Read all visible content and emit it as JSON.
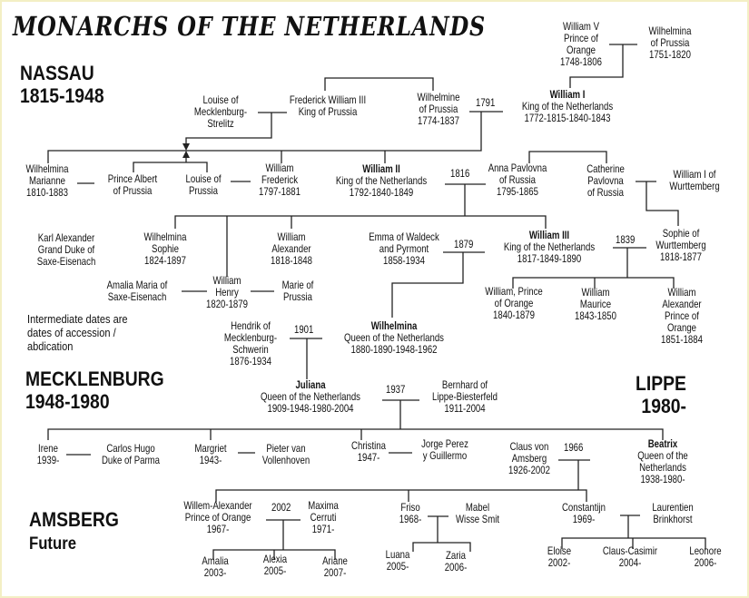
{
  "title": "MONARCHS OF THE NETHERLANDS",
  "houses": {
    "nassau": "NASSAU\n1815-1948",
    "mecklenburg": "MECKLENBURG\n1948-1980",
    "lippe": "LIPPE\n1980-",
    "amsberg_name": "AMSBERG",
    "amsberg_sub": "Future"
  },
  "note": "Intermediate dates are\ndates of accession /\nabdication",
  "marriage_years": {
    "y1791": "1791",
    "y1816": "1816",
    "y1879": "1879",
    "y1839": "1839",
    "y1901": "1901",
    "y1937": "1937",
    "y1966": "1966",
    "y2002": "2002"
  },
  "people": {
    "william_v": {
      "text": "William V\nPrince of\nOrange\n1748-1806"
    },
    "wilhelmina_prussia_1751": {
      "text": "Wilhelmina\nof Prussia\n1751-1820"
    },
    "william_i": {
      "name": "William I",
      "text": "King of the Netherlands\n1772-1815-1840-1843"
    },
    "louise_mecklenburg": {
      "text": "Louise of\nMecklenburg-\nStrelitz"
    },
    "frederick_william_iii": {
      "text": "Frederick William III\nKing of Prussia"
    },
    "wilhelmine_prussia": {
      "text": "Wilhelmine\nof Prussia\n1774-1837"
    },
    "wilhelmina_marianne": {
      "text": "Wilhelmina\nMarianne\n1810-1883"
    },
    "prince_albert": {
      "text": "Prince Albert\nof Prussia"
    },
    "louise_prussia": {
      "text": "Louise of\nPrussia"
    },
    "william_frederick": {
      "text": "William\nFrederick\n1797-1881"
    },
    "william_ii": {
      "name": "William II",
      "text": "King of the Netherlands\n1792-1840-1849"
    },
    "anna_pavlovna": {
      "text": "Anna Pavlovna\nof Russia\n1795-1865"
    },
    "catherine_pavlovna": {
      "text": "Catherine\nPavlovna\nof Russia"
    },
    "william_i_wurttemberg": {
      "text": "William I of\nWurttemberg"
    },
    "karl_alexander": {
      "text": "Karl Alexander\nGrand Duke of\nSaxe-Eisenach"
    },
    "wilhelmina_sophie": {
      "text": "Wilhelmina\nSophie\n1824-1897"
    },
    "william_alexander": {
      "text": "William\nAlexander\n1818-1848"
    },
    "emma_waldeck": {
      "text": "Emma of Waldeck\nand Pyrmont\n1858-1934"
    },
    "william_iii": {
      "name": "William III",
      "text": "King of the Netherlands\n1817-1849-1890"
    },
    "sophie_wurttemberg": {
      "text": "Sophie of\nWurttemberg\n1818-1877"
    },
    "amalia_maria": {
      "text": "Amalia Maria of\nSaxe-Eisenach"
    },
    "william_henry": {
      "text": "William\nHenry\n1820-1879"
    },
    "marie_prussia": {
      "text": "Marie of\nPrussia"
    },
    "william_prince_orange": {
      "text": "William, Prince\nof Orange\n1840-1879"
    },
    "william_maurice": {
      "text": "William\nMaurice\n1843-1850"
    },
    "william_alexander_orange": {
      "text": "William Alexander\nPrince of Orange\n1851-1884"
    },
    "hendrik": {
      "text": "Hendrik of\nMecklenburg-\nSchwerin\n1876-1934"
    },
    "wilhelmina": {
      "name": "Wilhelmina",
      "text": "Queen of the Netherlands\n1880-1890-1948-1962"
    },
    "juliana": {
      "name": "Juliana",
      "text": "Queen of the Netherlands\n1909-1948-1980-2004"
    },
    "bernhard": {
      "text": "Bernhard of\nLippe-Biesterfeld\n1911-2004"
    },
    "irene": {
      "text": "Irene\n1939-"
    },
    "carlos_hugo": {
      "text": "Carlos Hugo\nDuke of Parma"
    },
    "margriet": {
      "text": "Margriet\n1943-"
    },
    "pieter": {
      "text": "Pieter van\nVollenhoven"
    },
    "christina": {
      "text": "Christina\n1947-"
    },
    "jorge": {
      "text": "Jorge Perez\ny Guillermo"
    },
    "claus": {
      "text": "Claus von\nAmsberg\n1926-2002"
    },
    "beatrix": {
      "name": "Beatrix",
      "text": "Queen of the Netherlands\n1938-1980-"
    },
    "willem_alexander": {
      "text": "Willem-Alexander\nPrince of Orange\n1967-"
    },
    "maxima": {
      "text": "Maxima\nCerruti\n1971-"
    },
    "friso": {
      "text": "Friso\n1968-"
    },
    "mabel": {
      "text": "Mabel\nWisse Smit"
    },
    "constantijn": {
      "text": "Constantijn\n1969-"
    },
    "laurentien": {
      "text": "Laurentien\nBrinkhorst"
    },
    "amalia": {
      "text": "Amalia\n2003-"
    },
    "alexia": {
      "text": "Alexia\n2005-"
    },
    "ariane": {
      "text": "Ariane\n2007-"
    },
    "luana": {
      "text": "Luana\n2005-"
    },
    "zaria": {
      "text": "Zaria\n2006-"
    },
    "eloise": {
      "text": "Eloise\n2002-"
    },
    "claus_casimir": {
      "text": "Claus-Casimir\n2004-"
    },
    "leonore": {
      "text": "Leonore\n2006-"
    }
  }
}
